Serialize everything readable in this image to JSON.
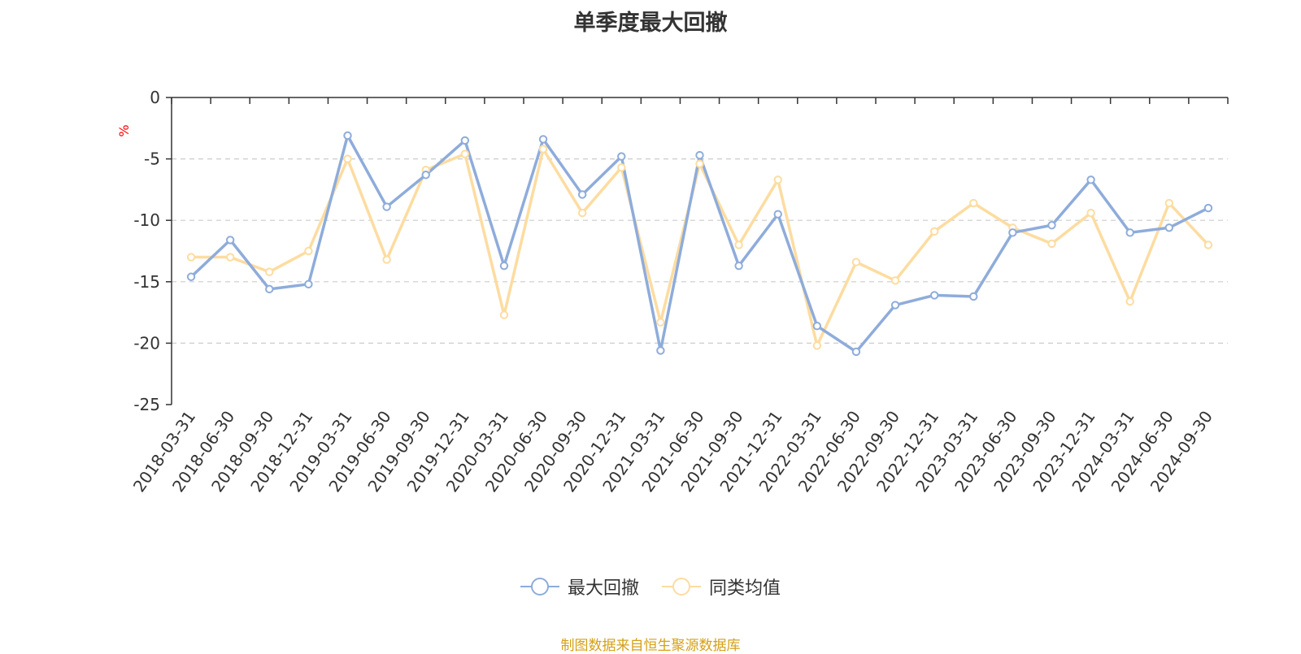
{
  "chart_data": {
    "type": "line",
    "title": "单季度最大回撤",
    "ylabel": "%",
    "xlabel": "",
    "ylim": [
      -25,
      0
    ],
    "yticks": [
      0,
      -5,
      -10,
      -15,
      -20,
      -25
    ],
    "grid": true,
    "legend_position": "bottom",
    "categories": [
      "2018-03-31",
      "2018-06-30",
      "2018-09-30",
      "2018-12-31",
      "2019-03-31",
      "2019-06-30",
      "2019-09-30",
      "2019-12-31",
      "2020-03-31",
      "2020-06-30",
      "2020-09-30",
      "2020-12-31",
      "2021-03-31",
      "2021-06-30",
      "2021-09-30",
      "2021-12-31",
      "2022-03-31",
      "2022-06-30",
      "2022-09-30",
      "2022-12-31",
      "2023-03-31",
      "2023-06-30",
      "2023-09-30",
      "2023-12-31",
      "2024-03-31",
      "2024-06-30",
      "2024-09-30"
    ],
    "series": [
      {
        "name": "最大回撤",
        "color": "#8eacdb",
        "values": [
          -14.6,
          -11.6,
          -15.6,
          -15.2,
          -3.1,
          -8.9,
          -6.3,
          -3.5,
          -13.7,
          -3.4,
          -7.9,
          -4.8,
          -20.6,
          -4.7,
          -13.7,
          -9.5,
          -18.6,
          -20.7,
          -16.9,
          -16.1,
          -16.2,
          -11.0,
          -10.4,
          -6.7,
          -11.0,
          -10.6,
          -9.0
        ]
      },
      {
        "name": "同类均值",
        "color": "#fddca0",
        "values": [
          -13.0,
          -13.0,
          -14.2,
          -12.5,
          -5.0,
          -13.2,
          -5.9,
          -4.6,
          -17.7,
          -4.2,
          -9.4,
          -5.7,
          -18.3,
          -5.4,
          -12.0,
          -6.7,
          -20.2,
          -13.4,
          -14.9,
          -10.9,
          -8.6,
          -10.6,
          -11.9,
          -9.4,
          -16.6,
          -8.6,
          -12.0
        ]
      }
    ]
  },
  "source_note": "制图数据来自恒生聚源数据库"
}
